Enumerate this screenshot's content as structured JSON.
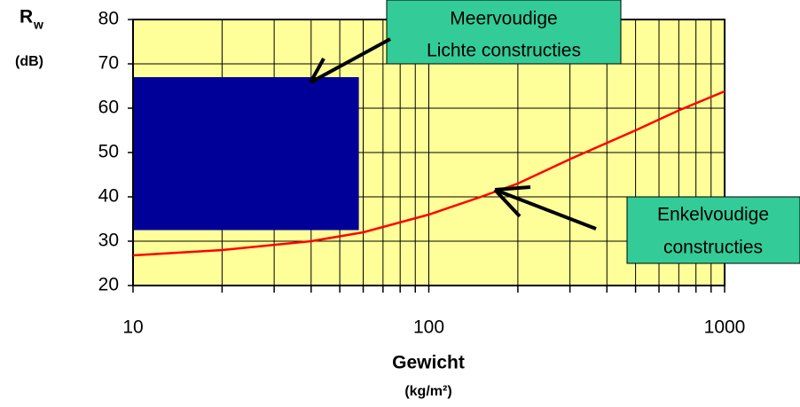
{
  "chart_data": {
    "type": "line",
    "y_label": "R",
    "y_label_sub": "w",
    "y_unit": "(dB)",
    "x_label": "Gewicht",
    "x_unit": "(kg/m²)",
    "x_log": true,
    "xlim": [
      10,
      1000
    ],
    "ylim": [
      20,
      80
    ],
    "xticks": [
      10,
      100,
      1000
    ],
    "yticks": [
      20,
      30,
      40,
      50,
      60,
      70,
      80
    ],
    "xgrid": [
      10,
      20,
      30,
      40,
      50,
      60,
      70,
      80,
      90,
      100,
      200,
      300,
      400,
      500,
      600,
      700,
      800,
      900,
      1000
    ],
    "grid": true,
    "background": "#ffff99",
    "x": [
      10,
      20,
      40,
      60,
      100,
      150,
      200,
      300,
      500,
      700,
      1000
    ],
    "series": [
      {
        "color": "#ff0000",
        "values": [
          26.8,
          28,
          30,
          32,
          36,
          40,
          43,
          48.5,
          55,
          59.5,
          63.8
        ]
      }
    ],
    "regions": [
      {
        "x": [
          10,
          58
        ],
        "y": [
          32.5,
          67
        ],
        "color": "#000099"
      }
    ],
    "annotations": [
      {
        "lines": [
          "Meervoudige",
          "Lichte constructies"
        ]
      },
      {
        "lines": [
          "Enkelvoudige",
          "constructies"
        ]
      }
    ]
  }
}
